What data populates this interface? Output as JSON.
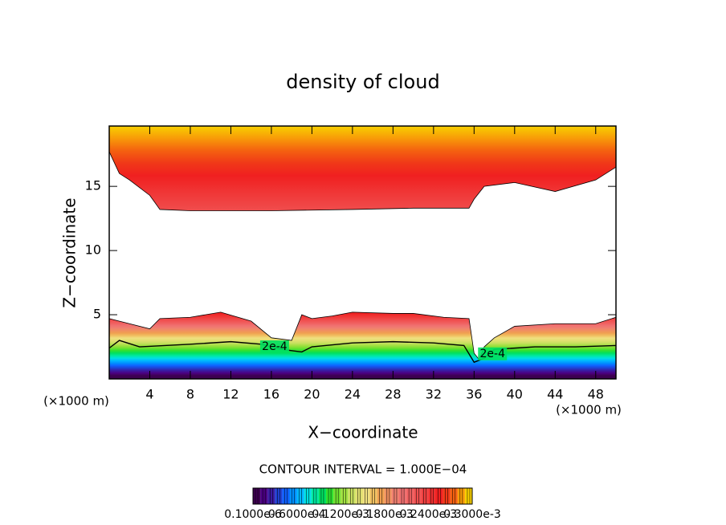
{
  "chart_data": {
    "type": "contour",
    "title": "density of cloud",
    "xlabel": "X−coordinate",
    "ylabel": "Z−coordinate",
    "unit_label": "(×1000 m)",
    "interval_label": "CONTOUR INTERVAL = 1.000E−04",
    "xlim": [
      0,
      50
    ],
    "ylim": [
      0,
      19.7
    ],
    "xticks": [
      4,
      8,
      12,
      16,
      20,
      24,
      28,
      32,
      36,
      40,
      44,
      48
    ],
    "yticks": [
      5,
      10,
      15
    ],
    "upper_deck_base": {
      "x": [
        0,
        1,
        2,
        4,
        5,
        8,
        16,
        24,
        30,
        35.5,
        36,
        37,
        40,
        44,
        48,
        50
      ],
      "z": [
        17.7,
        16,
        15.5,
        14.3,
        13.2,
        13.1,
        13.1,
        13.2,
        13.3,
        13.3,
        14,
        15,
        15.3,
        14.6,
        15.5,
        16.5
      ]
    },
    "lower_deck_top": {
      "x": [
        0,
        2,
        4,
        5,
        8,
        11,
        14,
        16,
        18,
        19,
        20,
        22,
        24,
        28,
        30,
        33,
        35.5,
        36,
        36.5,
        37,
        38,
        40,
        44,
        48,
        50
      ],
      "z": [
        4.7,
        4.3,
        3.9,
        4.7,
        4.8,
        5.2,
        4.5,
        3.2,
        3,
        5,
        4.7,
        4.9,
        5.2,
        5.1,
        5.1,
        4.8,
        4.7,
        2,
        1.5,
        2.5,
        3.2,
        4.1,
        4.3,
        4.3,
        4.8
      ]
    },
    "labelled_contour": {
      "label": "2e-4",
      "x": [
        0,
        1,
        3,
        8,
        12,
        15,
        17,
        19,
        20,
        24,
        28,
        32,
        35,
        36,
        37,
        38,
        42,
        46,
        50
      ],
      "z": [
        2.4,
        3,
        2.5,
        2.7,
        2.9,
        2.7,
        2.3,
        2.1,
        2.5,
        2.8,
        2.9,
        2.8,
        2.6,
        1.3,
        1.6,
        2.3,
        2.5,
        2.5,
        2.6
      ]
    },
    "colorbar_labels": [
      "0.1000e-6",
      "0.6000e-4",
      "0.1200e-3",
      "0.1800e-3",
      "0.2400e-3",
      "0.3000e-3"
    ],
    "colormap": [
      "#3d0050",
      "#4b0082",
      "#3a1aa0",
      "#2040d0",
      "#1060ff",
      "#0090ff",
      "#00b8ff",
      "#00e0e0",
      "#00e8a0",
      "#00e060",
      "#30e030",
      "#70e030",
      "#a0e040",
      "#c8e060",
      "#e0e070",
      "#f0e080",
      "#f0c060",
      "#f0a050",
      "#f09060",
      "#f08070",
      "#f07070",
      "#f06060",
      "#f05050",
      "#f04040",
      "#f03030",
      "#f02020",
      "#f03818",
      "#f46010",
      "#f89a08",
      "#f8d000"
    ]
  }
}
